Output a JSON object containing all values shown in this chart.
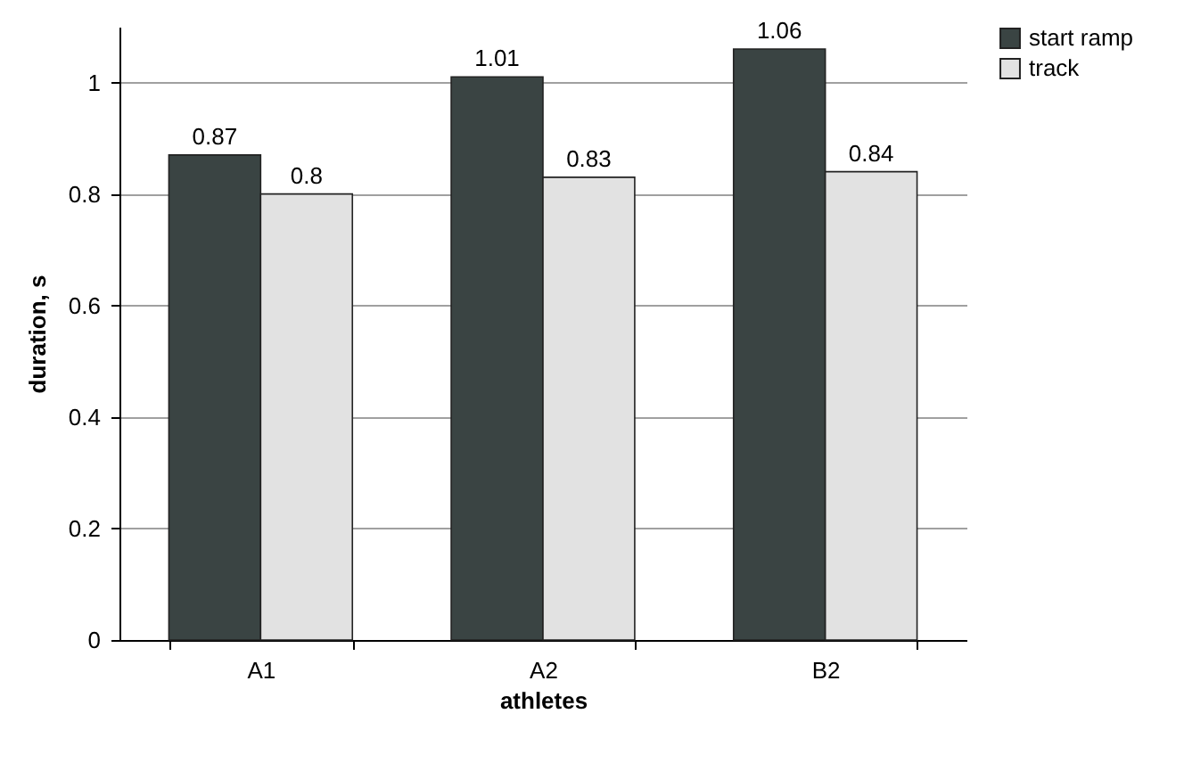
{
  "chart_data": {
    "type": "bar",
    "xlabel": "athletes",
    "ylabel": "duration, s",
    "categories": [
      "A1",
      "A2",
      "B2"
    ],
    "series": [
      {
        "name": "start ramp",
        "color": "#3a4443",
        "values": [
          0.87,
          1.01,
          1.06
        ]
      },
      {
        "name": "track",
        "color": "#e2e2e2",
        "values": [
          0.8,
          0.83,
          0.84
        ]
      }
    ],
    "ylim": [
      0,
      1.1
    ],
    "yticks": [
      0,
      0.2,
      0.4,
      0.6,
      0.8,
      1
    ],
    "grid": "y",
    "legend": "right",
    "data_labels": true
  }
}
